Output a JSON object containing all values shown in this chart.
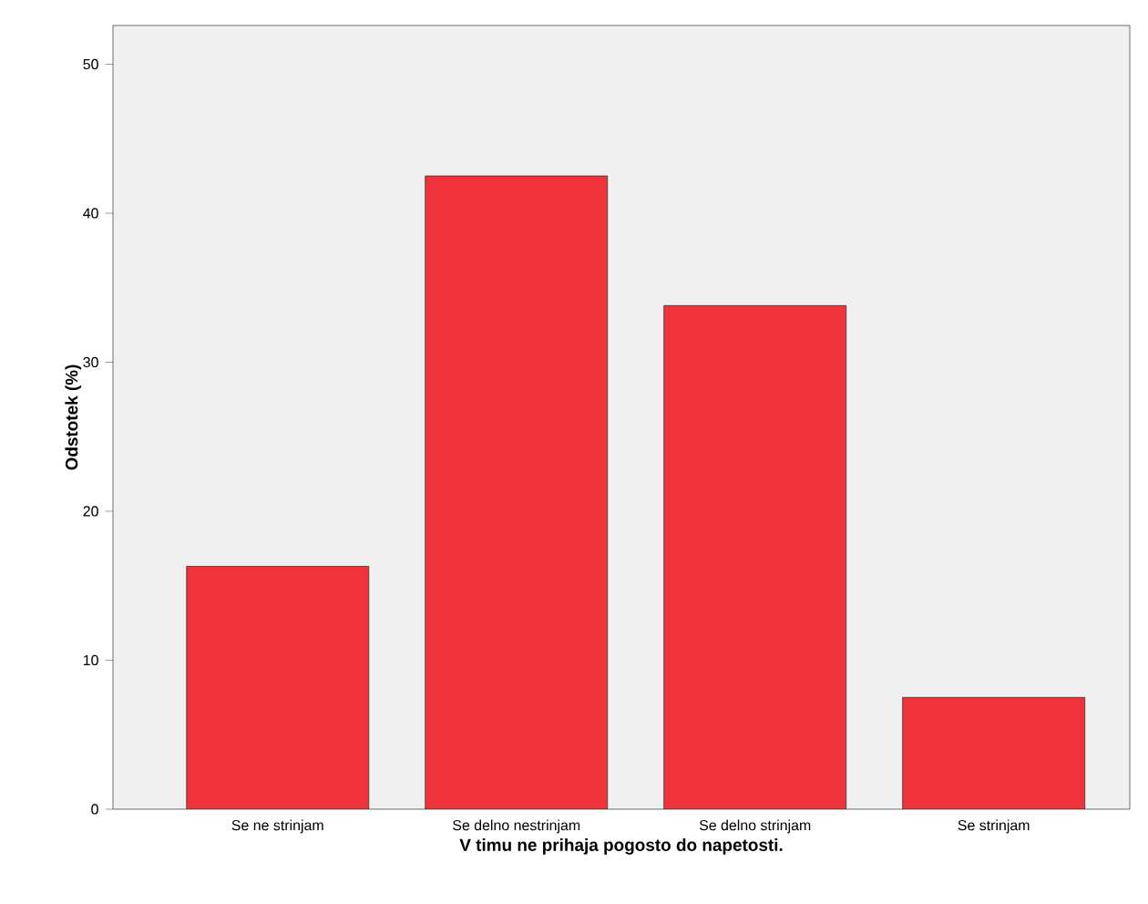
{
  "chart_data": {
    "type": "bar",
    "xlabel": "V timu ne prihaja pogosto do napetosti.",
    "ylabel": "Odstotek (%)",
    "categories": [
      "Se ne strinjam",
      "Se delno nestrinjam",
      "Se delno strinjam",
      "Se strinjam"
    ],
    "values": [
      16.3,
      42.5,
      33.8,
      7.5
    ],
    "color": "#f0323a",
    "ylim": [
      0,
      52.6
    ],
    "yticks": [
      0,
      10,
      20,
      30,
      40,
      50
    ]
  }
}
